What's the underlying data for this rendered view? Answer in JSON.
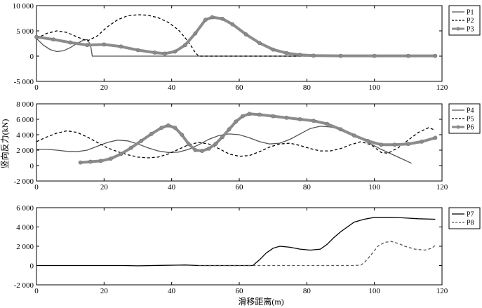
{
  "chart_data": [
    {
      "type": "line",
      "xlim": [
        0,
        120
      ],
      "ylim": [
        -5000,
        10000
      ],
      "xticks": [
        "0",
        "20",
        "40",
        "60",
        "80",
        "100",
        "120"
      ],
      "yticks": [
        "-5 000",
        "0",
        "5 000",
        "10 000"
      ],
      "grid": false,
      "legend_position": "outside-right",
      "series": [
        {
          "name": "P1",
          "style": "solid",
          "color": "#555555",
          "points": [
            [
              0,
              3500
            ],
            [
              2,
              2200
            ],
            [
              4,
              1300
            ],
            [
              6,
              900
            ],
            [
              8,
              1050
            ],
            [
              10,
              1700
            ],
            [
              12,
              2500
            ],
            [
              14,
              3200
            ],
            [
              15,
              3300
            ],
            [
              16,
              2200
            ],
            [
              16.5,
              0
            ],
            [
              20,
              0
            ],
            [
              40,
              0
            ],
            [
              60,
              0
            ],
            [
              80,
              0
            ],
            [
              100,
              0
            ],
            [
              118,
              0
            ]
          ]
        },
        {
          "name": "P2",
          "style": "dashed",
          "color": "#000000",
          "points": [
            [
              0,
              3500
            ],
            [
              3,
              4500
            ],
            [
              6,
              5000
            ],
            [
              9,
              4700
            ],
            [
              12,
              3800
            ],
            [
              15,
              3000
            ],
            [
              18,
              4000
            ],
            [
              21,
              5800
            ],
            [
              24,
              7200
            ],
            [
              27,
              8000
            ],
            [
              30,
              8200
            ],
            [
              33,
              8100
            ],
            [
              36,
              7600
            ],
            [
              39,
              6700
            ],
            [
              42,
              5200
            ],
            [
              45,
              2800
            ],
            [
              47,
              700
            ],
            [
              48,
              0
            ],
            [
              60,
              0
            ],
            [
              80,
              0
            ],
            [
              100,
              0
            ],
            [
              118,
              0
            ]
          ]
        },
        {
          "name": "P3",
          "style": "solid-markers",
          "color": "#8c8c8c",
          "points": [
            [
              0,
              3800
            ],
            [
              5,
              3300
            ],
            [
              10,
              2700
            ],
            [
              15,
              2200
            ],
            [
              20,
              2300
            ],
            [
              25,
              1900
            ],
            [
              30,
              1200
            ],
            [
              35,
              700
            ],
            [
              38,
              500
            ],
            [
              41,
              900
            ],
            [
              44,
              2200
            ],
            [
              47,
              4500
            ],
            [
              50,
              7200
            ],
            [
              52,
              7700
            ],
            [
              55,
              7400
            ],
            [
              58,
              6300
            ],
            [
              62,
              4300
            ],
            [
              66,
              2600
            ],
            [
              70,
              1300
            ],
            [
              74,
              600
            ],
            [
              78,
              250
            ],
            [
              82,
              100
            ],
            [
              90,
              50
            ],
            [
              100,
              50
            ],
            [
              110,
              50
            ],
            [
              118,
              50
            ]
          ]
        }
      ]
    },
    {
      "type": "line",
      "xlim": [
        0,
        120
      ],
      "ylim": [
        -2000,
        8000
      ],
      "xticks": [
        "0",
        "20",
        "40",
        "60",
        "80",
        "100",
        "120"
      ],
      "yticks": [
        "-2 000",
        "0",
        "2 000",
        "4 000",
        "6 000",
        "8 000"
      ],
      "ylabel": "竖向反力(kN)",
      "grid": false,
      "legend_position": "outside-right",
      "series": [
        {
          "name": "P4",
          "style": "solid",
          "color": "#555555",
          "points": [
            [
              0,
              2100
            ],
            [
              3,
              2100
            ],
            [
              6,
              2000
            ],
            [
              9,
              1850
            ],
            [
              12,
              1800
            ],
            [
              15,
              2000
            ],
            [
              18,
              2500
            ],
            [
              21,
              3000
            ],
            [
              24,
              3300
            ],
            [
              27,
              3200
            ],
            [
              30,
              2800
            ],
            [
              33,
              2300
            ],
            [
              36,
              1900
            ],
            [
              39,
              1700
            ],
            [
              42,
              1750
            ],
            [
              45,
              2100
            ],
            [
              48,
              2700
            ],
            [
              51,
              3400
            ],
            [
              54,
              3900
            ],
            [
              57,
              4100
            ],
            [
              60,
              4000
            ],
            [
              63,
              3600
            ],
            [
              66,
              3100
            ],
            [
              69,
              2800
            ],
            [
              72,
              2900
            ],
            [
              75,
              3400
            ],
            [
              78,
              4100
            ],
            [
              81,
              4800
            ],
            [
              84,
              5100
            ],
            [
              87,
              5000
            ],
            [
              90,
              4700
            ],
            [
              93,
              4200
            ],
            [
              96,
              3600
            ],
            [
              99,
              2800
            ],
            [
              102,
              2100
            ],
            [
              105,
              1500
            ],
            [
              108,
              900
            ],
            [
              111,
              300
            ]
          ]
        },
        {
          "name": "P5",
          "style": "dashed",
          "color": "#000000",
          "points": [
            [
              0,
              3100
            ],
            [
              3,
              3700
            ],
            [
              6,
              4200
            ],
            [
              9,
              4500
            ],
            [
              12,
              4300
            ],
            [
              15,
              3700
            ],
            [
              18,
              3000
            ],
            [
              21,
              2300
            ],
            [
              24,
              1800
            ],
            [
              27,
              1400
            ],
            [
              30,
              1100
            ],
            [
              33,
              1000
            ],
            [
              36,
              1100
            ],
            [
              39,
              1500
            ],
            [
              42,
              2100
            ],
            [
              45,
              2700
            ],
            [
              48,
              3000
            ],
            [
              51,
              2800
            ],
            [
              54,
              2200
            ],
            [
              57,
              1500
            ],
            [
              60,
              1200
            ],
            [
              63,
              1300
            ],
            [
              66,
              1800
            ],
            [
              69,
              2400
            ],
            [
              72,
              2800
            ],
            [
              75,
              2900
            ],
            [
              78,
              2600
            ],
            [
              81,
              2200
            ],
            [
              84,
              1900
            ],
            [
              87,
              1900
            ],
            [
              90,
              2200
            ],
            [
              93,
              2700
            ],
            [
              96,
              3100
            ],
            [
              99,
              2700
            ],
            [
              102,
              1700
            ],
            [
              104,
              1600
            ],
            [
              107,
              2300
            ],
            [
              110,
              3300
            ],
            [
              113,
              4300
            ],
            [
              116,
              4900
            ],
            [
              118,
              4600
            ]
          ]
        },
        {
          "name": "P6",
          "style": "solid-markers",
          "color": "#8c8c8c",
          "points": [
            [
              13,
              400
            ],
            [
              16,
              500
            ],
            [
              19,
              600
            ],
            [
              22,
              900
            ],
            [
              25,
              1500
            ],
            [
              28,
              2300
            ],
            [
              31,
              3200
            ],
            [
              34,
              4100
            ],
            [
              37,
              4900
            ],
            [
              39,
              5200
            ],
            [
              41,
              4900
            ],
            [
              43,
              4000
            ],
            [
              45,
              2800
            ],
            [
              47,
              2000
            ],
            [
              49,
              1900
            ],
            [
              51,
              2200
            ],
            [
              53,
              2800
            ],
            [
              55,
              3700
            ],
            [
              57,
              4700
            ],
            [
              59,
              5700
            ],
            [
              61,
              6400
            ],
            [
              63,
              6700
            ],
            [
              66,
              6600
            ],
            [
              70,
              6400
            ],
            [
              74,
              6200
            ],
            [
              78,
              6000
            ],
            [
              82,
              5800
            ],
            [
              86,
              5400
            ],
            [
              90,
              4700
            ],
            [
              94,
              3900
            ],
            [
              98,
              3200
            ],
            [
              102,
              2700
            ],
            [
              106,
              2700
            ],
            [
              110,
              2800
            ],
            [
              114,
              3100
            ],
            [
              118,
              3600
            ]
          ]
        }
      ]
    },
    {
      "type": "line",
      "xlim": [
        0,
        120
      ],
      "ylim": [
        -2000,
        6000
      ],
      "xticks": [
        "0",
        "20",
        "40",
        "60",
        "80",
        "100",
        "120"
      ],
      "yticks": [
        "-2 000",
        "0",
        "2 000",
        "4 000",
        "6 000"
      ],
      "xlabel": "滑移距离(m)",
      "grid": false,
      "legend_position": "outside-right",
      "series": [
        {
          "name": "P7",
          "style": "solid",
          "color": "#000000",
          "points": [
            [
              0,
              0
            ],
            [
              20,
              0
            ],
            [
              26,
              0
            ],
            [
              30,
              -30
            ],
            [
              38,
              20
            ],
            [
              44,
              60
            ],
            [
              48,
              0
            ],
            [
              60,
              0
            ],
            [
              64,
              0
            ],
            [
              66,
              600
            ],
            [
              68,
              1300
            ],
            [
              70,
              1800
            ],
            [
              72,
              2000
            ],
            [
              75,
              1900
            ],
            [
              78,
              1700
            ],
            [
              81,
              1600
            ],
            [
              84,
              1700
            ],
            [
              86,
              2200
            ],
            [
              88,
              2900
            ],
            [
              90,
              3500
            ],
            [
              92,
              4000
            ],
            [
              94,
              4500
            ],
            [
              97,
              4800
            ],
            [
              100,
              5000
            ],
            [
              104,
              5000
            ],
            [
              108,
              4950
            ],
            [
              113,
              4850
            ],
            [
              118,
              4800
            ]
          ]
        },
        {
          "name": "P8",
          "style": "dashed",
          "color": "#555555",
          "points": [
            [
              48,
              0
            ],
            [
              60,
              0
            ],
            [
              80,
              0
            ],
            [
              94,
              0
            ],
            [
              96,
              50
            ],
            [
              97,
              300
            ],
            [
              99,
              1100
            ],
            [
              101,
              2000
            ],
            [
              103,
              2400
            ],
            [
              105,
              2500
            ],
            [
              107,
              2300
            ],
            [
              109,
              2000
            ],
            [
              112,
              1700
            ],
            [
              115,
              1600
            ],
            [
              117,
              1800
            ],
            [
              118,
              2100
            ]
          ]
        }
      ]
    }
  ]
}
